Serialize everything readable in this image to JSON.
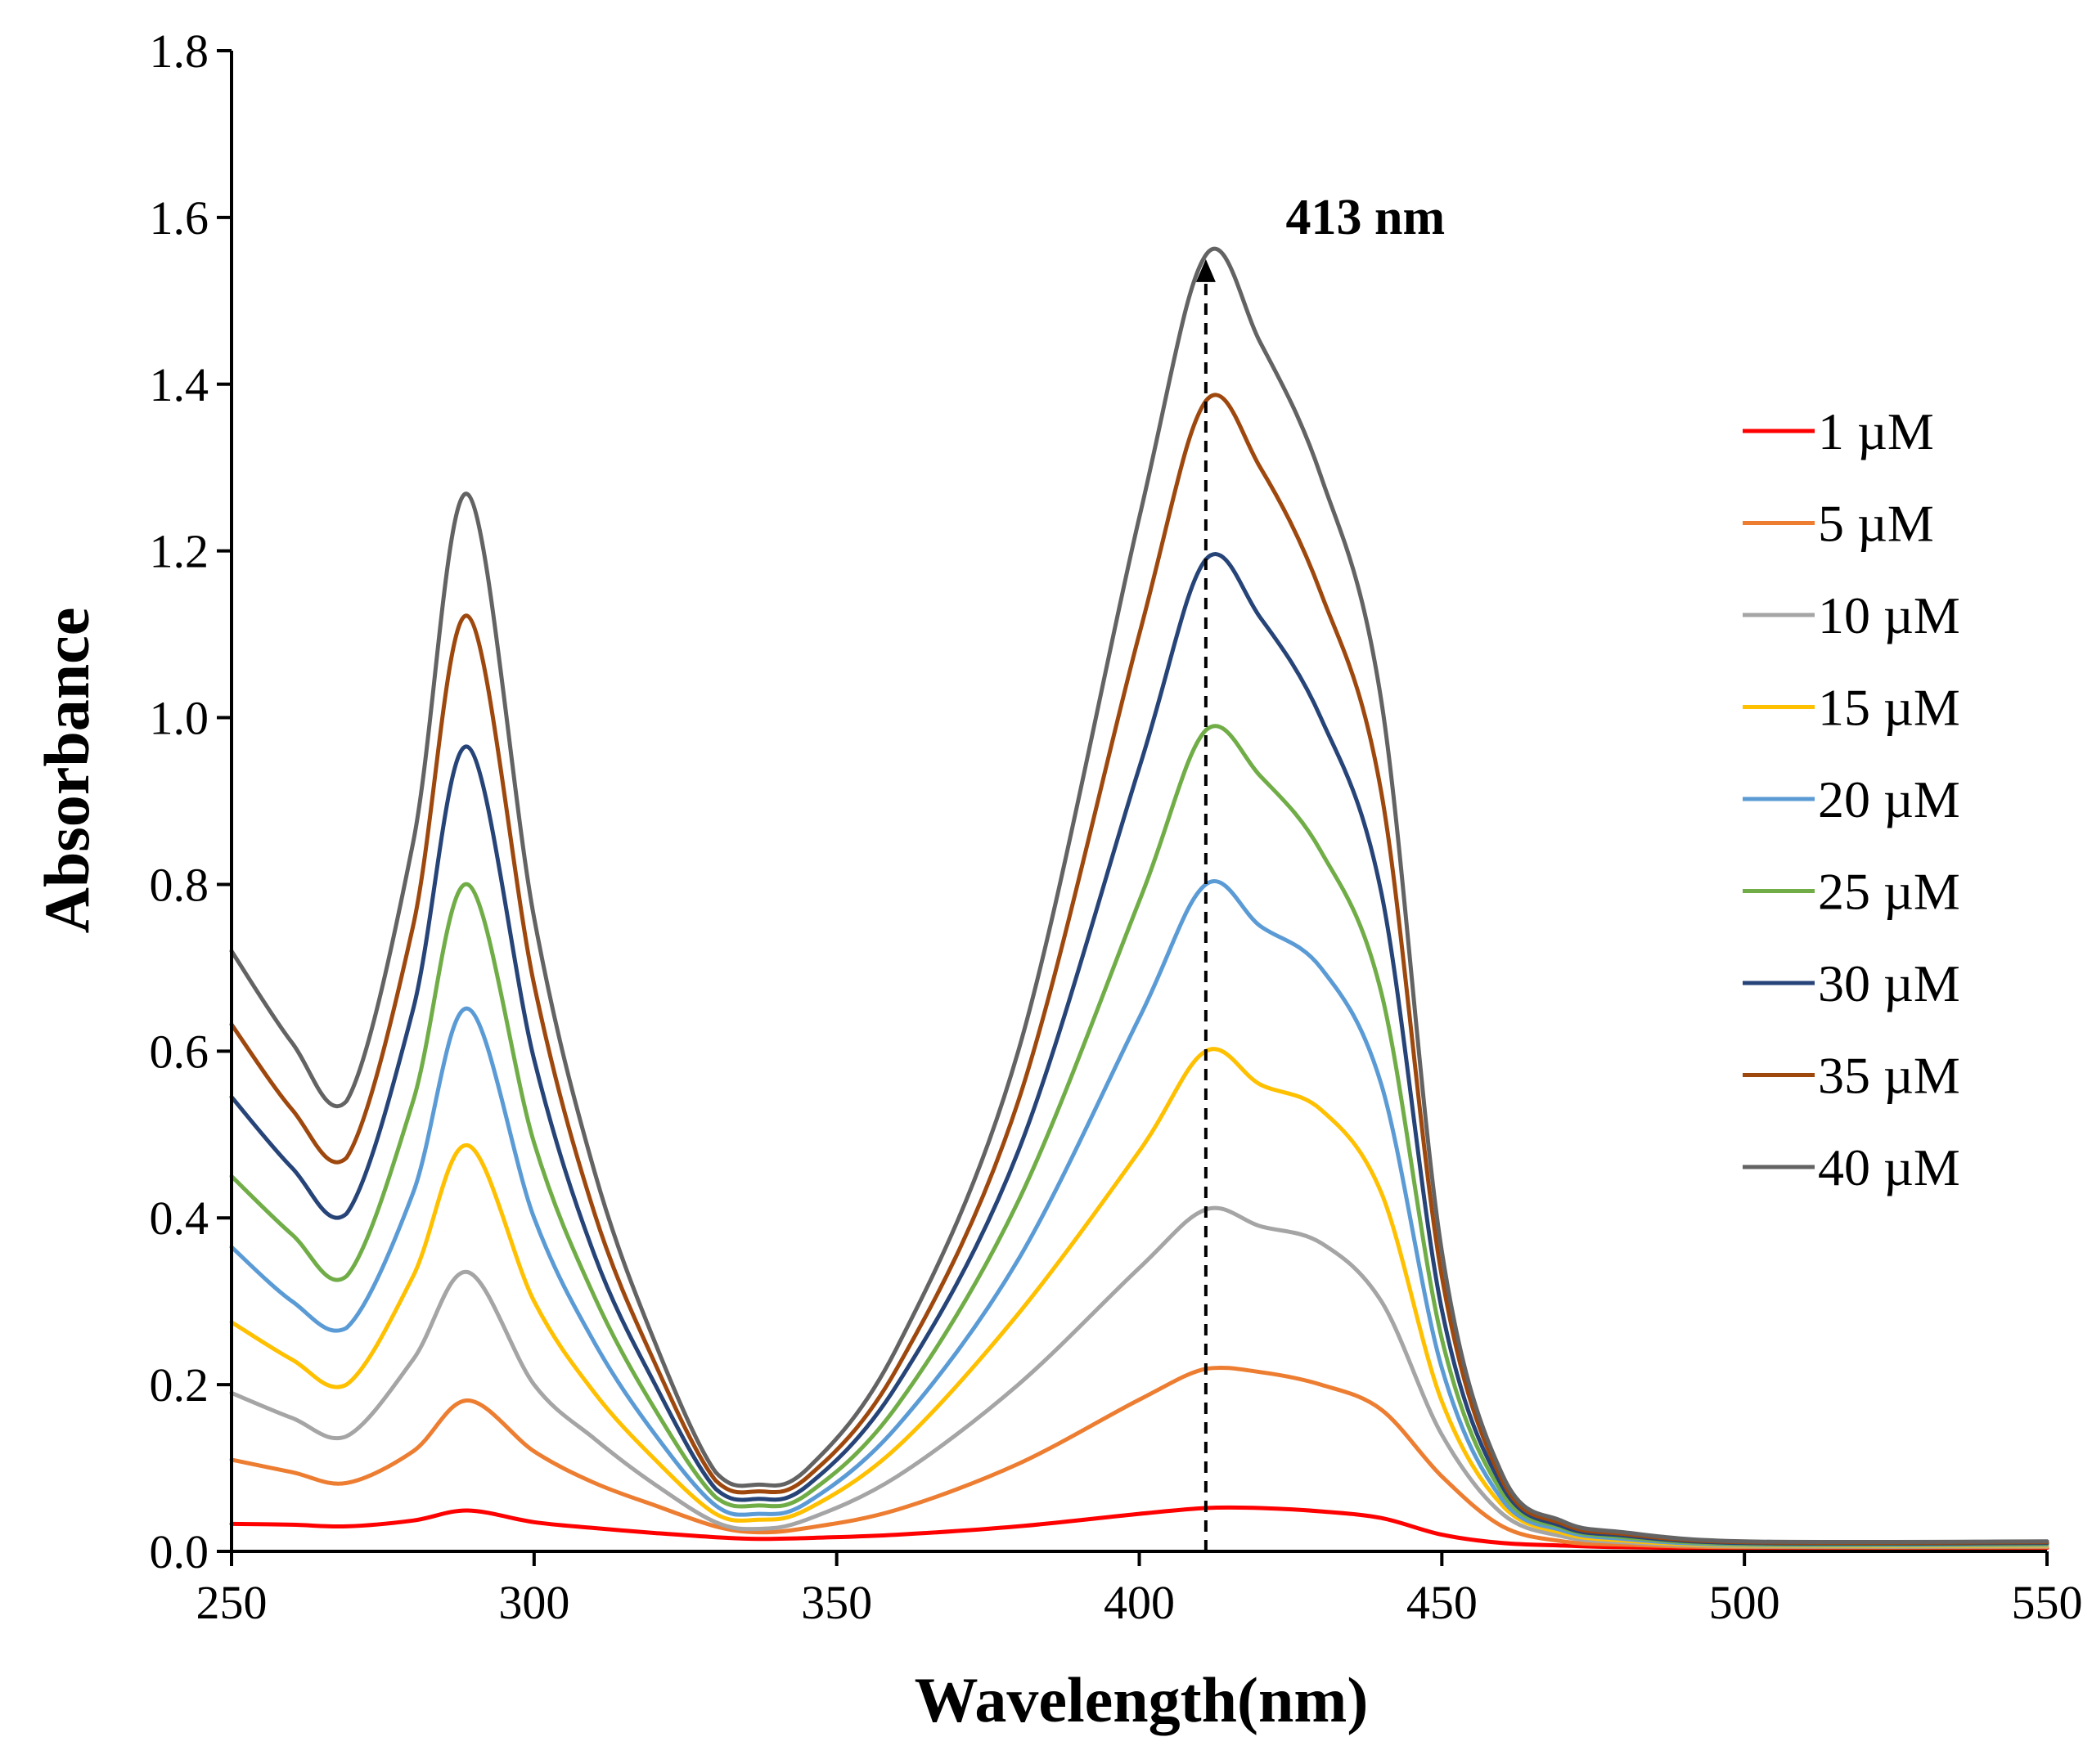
{
  "chart_data": {
    "type": "line",
    "xlabel": "Wavelength(nm)",
    "ylabel": "Absorbance",
    "xlim": [
      250,
      550
    ],
    "ylim": [
      0,
      1.8
    ],
    "x_ticks": [
      250,
      300,
      350,
      400,
      450,
      500,
      550
    ],
    "y_ticks": [
      "0.0",
      "0.2",
      "0.4",
      "0.6",
      "0.8",
      "1.0",
      "1.2",
      "1.4",
      "1.6",
      "1.8"
    ],
    "grid": false,
    "legend_position": "right",
    "annotation": {
      "text": "413 nm",
      "x": 411,
      "y_start": 0,
      "y_end": 1.55,
      "arrow": "dashed-up"
    },
    "x": [
      250,
      260,
      269,
      280,
      289,
      300,
      310,
      320,
      330,
      337,
      345,
      360,
      380,
      400,
      411,
      420,
      430,
      440,
      450,
      460,
      470,
      480,
      500,
      550
    ],
    "series": [
      {
        "name": "1 µM",
        "color": "#ff0000",
        "values": [
          0.033,
          0.032,
          0.03,
          0.037,
          0.049,
          0.035,
          0.028,
          0.022,
          0.017,
          0.015,
          0.016,
          0.02,
          0.03,
          0.045,
          0.052,
          0.052,
          0.048,
          0.04,
          0.02,
          0.01,
          0.007,
          0.005,
          0.004,
          0.004
        ]
      },
      {
        "name": "5 µM",
        "color": "#ed7d31",
        "values": [
          0.11,
          0.095,
          0.082,
          0.12,
          0.181,
          0.12,
          0.082,
          0.055,
          0.03,
          0.023,
          0.028,
          0.05,
          0.105,
          0.182,
          0.219,
          0.215,
          0.2,
          0.17,
          0.09,
          0.03,
          0.012,
          0.008,
          0.005,
          0.005
        ]
      },
      {
        "name": "10 µM",
        "color": "#a5a5a5",
        "values": [
          0.19,
          0.16,
          0.138,
          0.23,
          0.335,
          0.2,
          0.135,
          0.08,
          0.035,
          0.027,
          0.038,
          0.09,
          0.2,
          0.34,
          0.41,
          0.39,
          0.37,
          0.3,
          0.14,
          0.045,
          0.018,
          0.011,
          0.006,
          0.006
        ]
      },
      {
        "name": "15 µM",
        "color": "#ffc000",
        "values": [
          0.275,
          0.23,
          0.2,
          0.33,
          0.487,
          0.3,
          0.19,
          0.11,
          0.045,
          0.038,
          0.05,
          0.125,
          0.285,
          0.48,
          0.6,
          0.56,
          0.53,
          0.43,
          0.18,
          0.055,
          0.022,
          0.013,
          0.007,
          0.007
        ]
      },
      {
        "name": "20 µM",
        "color": "#5b9bd5",
        "values": [
          0.365,
          0.3,
          0.268,
          0.43,
          0.651,
          0.4,
          0.25,
          0.14,
          0.055,
          0.045,
          0.058,
          0.15,
          0.35,
          0.64,
          0.8,
          0.75,
          0.7,
          0.56,
          0.22,
          0.062,
          0.025,
          0.015,
          0.008,
          0.008
        ]
      },
      {
        "name": "25 µM",
        "color": "#70ad47",
        "values": [
          0.45,
          0.38,
          0.33,
          0.54,
          0.8,
          0.49,
          0.305,
          0.17,
          0.065,
          0.055,
          0.068,
          0.175,
          0.42,
          0.78,
          0.985,
          0.93,
          0.84,
          0.67,
          0.255,
          0.07,
          0.028,
          0.017,
          0.009,
          0.009
        ]
      },
      {
        "name": "30 µM",
        "color": "#264478",
        "values": [
          0.545,
          0.46,
          0.405,
          0.65,
          0.965,
          0.59,
          0.355,
          0.2,
          0.075,
          0.063,
          0.078,
          0.2,
          0.48,
          0.94,
          1.19,
          1.12,
          1.0,
          0.79,
          0.29,
          0.078,
          0.03,
          0.019,
          0.01,
          0.01
        ]
      },
      {
        "name": "35 µM",
        "color": "#9e480e",
        "values": [
          0.632,
          0.53,
          0.472,
          0.75,
          1.122,
          0.68,
          0.405,
          0.225,
          0.085,
          0.072,
          0.088,
          0.22,
          0.54,
          1.1,
          1.38,
          1.3,
          1.15,
          0.91,
          0.33,
          0.085,
          0.033,
          0.021,
          0.011,
          0.011
        ]
      },
      {
        "name": "40 µM",
        "color": "#636363",
        "values": [
          0.72,
          0.61,
          0.54,
          0.85,
          1.268,
          0.76,
          0.455,
          0.25,
          0.095,
          0.08,
          0.098,
          0.245,
          0.6,
          1.24,
          1.555,
          1.45,
          1.29,
          1.02,
          0.36,
          0.092,
          0.036,
          0.023,
          0.012,
          0.012
        ]
      }
    ]
  }
}
